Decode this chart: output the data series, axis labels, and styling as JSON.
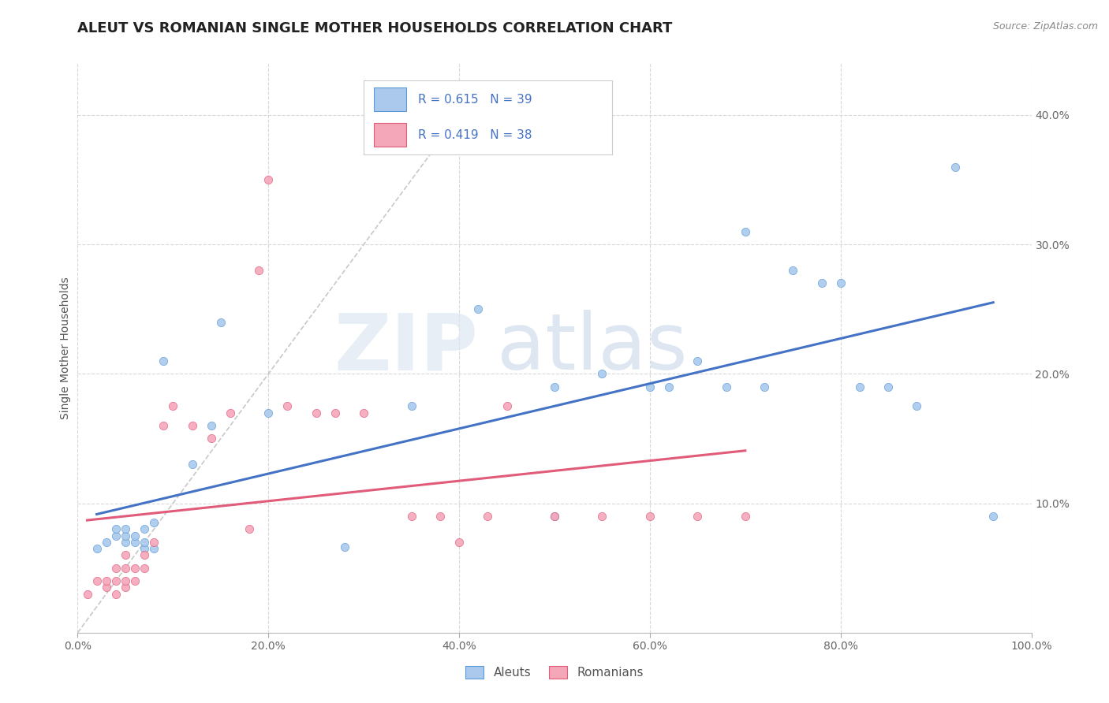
{
  "title": "ALEUT VS ROMANIAN SINGLE MOTHER HOUSEHOLDS CORRELATION CHART",
  "source": "Source: ZipAtlas.com",
  "ylabel": "Single Mother Households",
  "xlim": [
    0.0,
    1.0
  ],
  "ylim": [
    0.0,
    0.44
  ],
  "xticks": [
    0.0,
    0.2,
    0.4,
    0.6,
    0.8,
    1.0
  ],
  "xtick_labels": [
    "0.0%",
    "20.0%",
    "40.0%",
    "60.0%",
    "80.0%",
    "100.0%"
  ],
  "yticks": [
    0.0,
    0.1,
    0.2,
    0.3,
    0.4
  ],
  "ytick_labels": [
    "",
    "10.0%",
    "20.0%",
    "30.0%",
    "40.0%"
  ],
  "aleut_color": "#aac9ed",
  "romanian_color": "#f4a7b9",
  "aleut_edge_color": "#5b9bd5",
  "romanian_edge_color": "#e05c7a",
  "aleut_line_color": "#4472c4",
  "romanian_line_color": "#e05c7a",
  "diagonal_color": "#c8c8c8",
  "R_aleut": 0.615,
  "N_aleut": 39,
  "R_romanian": 0.419,
  "N_romanian": 38,
  "legend_labels": [
    "Aleuts",
    "Romanians"
  ],
  "aleut_x": [
    0.02,
    0.03,
    0.04,
    0.04,
    0.05,
    0.05,
    0.05,
    0.06,
    0.06,
    0.07,
    0.07,
    0.07,
    0.08,
    0.08,
    0.09,
    0.12,
    0.14,
    0.15,
    0.2,
    0.28,
    0.35,
    0.42,
    0.5,
    0.5,
    0.55,
    0.6,
    0.62,
    0.65,
    0.68,
    0.7,
    0.72,
    0.75,
    0.78,
    0.8,
    0.82,
    0.85,
    0.88,
    0.92,
    0.96
  ],
  "aleut_y": [
    0.065,
    0.07,
    0.075,
    0.08,
    0.07,
    0.075,
    0.08,
    0.07,
    0.075,
    0.065,
    0.07,
    0.08,
    0.065,
    0.085,
    0.21,
    0.13,
    0.16,
    0.24,
    0.17,
    0.066,
    0.175,
    0.25,
    0.19,
    0.09,
    0.2,
    0.19,
    0.19,
    0.21,
    0.19,
    0.31,
    0.19,
    0.28,
    0.27,
    0.27,
    0.19,
    0.19,
    0.175,
    0.36,
    0.09
  ],
  "romanian_x": [
    0.01,
    0.02,
    0.03,
    0.03,
    0.04,
    0.04,
    0.04,
    0.05,
    0.05,
    0.05,
    0.05,
    0.06,
    0.06,
    0.07,
    0.07,
    0.08,
    0.09,
    0.1,
    0.12,
    0.14,
    0.16,
    0.18,
    0.19,
    0.2,
    0.22,
    0.25,
    0.27,
    0.3,
    0.35,
    0.38,
    0.4,
    0.43,
    0.45,
    0.5,
    0.55,
    0.6,
    0.65,
    0.7
  ],
  "romanian_y": [
    0.03,
    0.04,
    0.035,
    0.04,
    0.03,
    0.04,
    0.05,
    0.035,
    0.04,
    0.05,
    0.06,
    0.04,
    0.05,
    0.06,
    0.05,
    0.07,
    0.16,
    0.175,
    0.16,
    0.15,
    0.17,
    0.08,
    0.28,
    0.35,
    0.175,
    0.17,
    0.17,
    0.17,
    0.09,
    0.09,
    0.07,
    0.09,
    0.175,
    0.09,
    0.09,
    0.09,
    0.09,
    0.09
  ],
  "background_color": "#ffffff",
  "grid_color": "#d8d8d8",
  "title_fontsize": 13,
  "axis_label_fontsize": 10,
  "tick_fontsize": 10
}
